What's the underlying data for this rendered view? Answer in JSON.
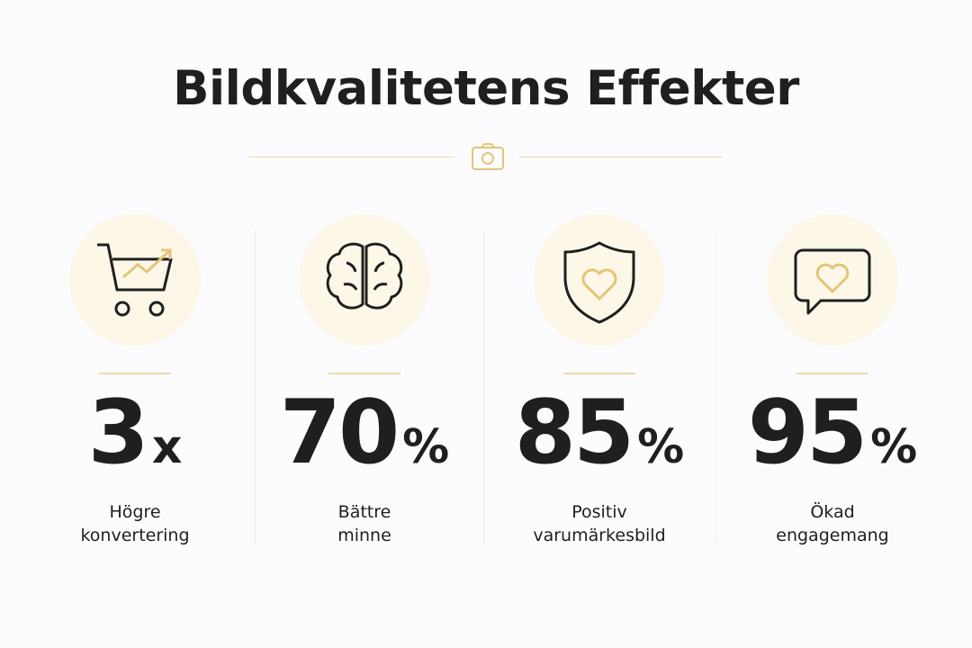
{
  "title": "Bildkvalitetens Effekter",
  "stats": [
    {
      "value": "3",
      "unit": "x",
      "label": [
        "Högre",
        "konvertering"
      ]
    },
    {
      "value": "70",
      "unit": "%",
      "label": [
        "Bättre",
        "minne"
      ]
    },
    {
      "value": "85",
      "unit": "%",
      "label": [
        "Positiv",
        "varumärkesbild"
      ]
    },
    {
      "value": "95",
      "unit": "%",
      "label": [
        "Ökad",
        "engagemang"
      ]
    }
  ]
}
